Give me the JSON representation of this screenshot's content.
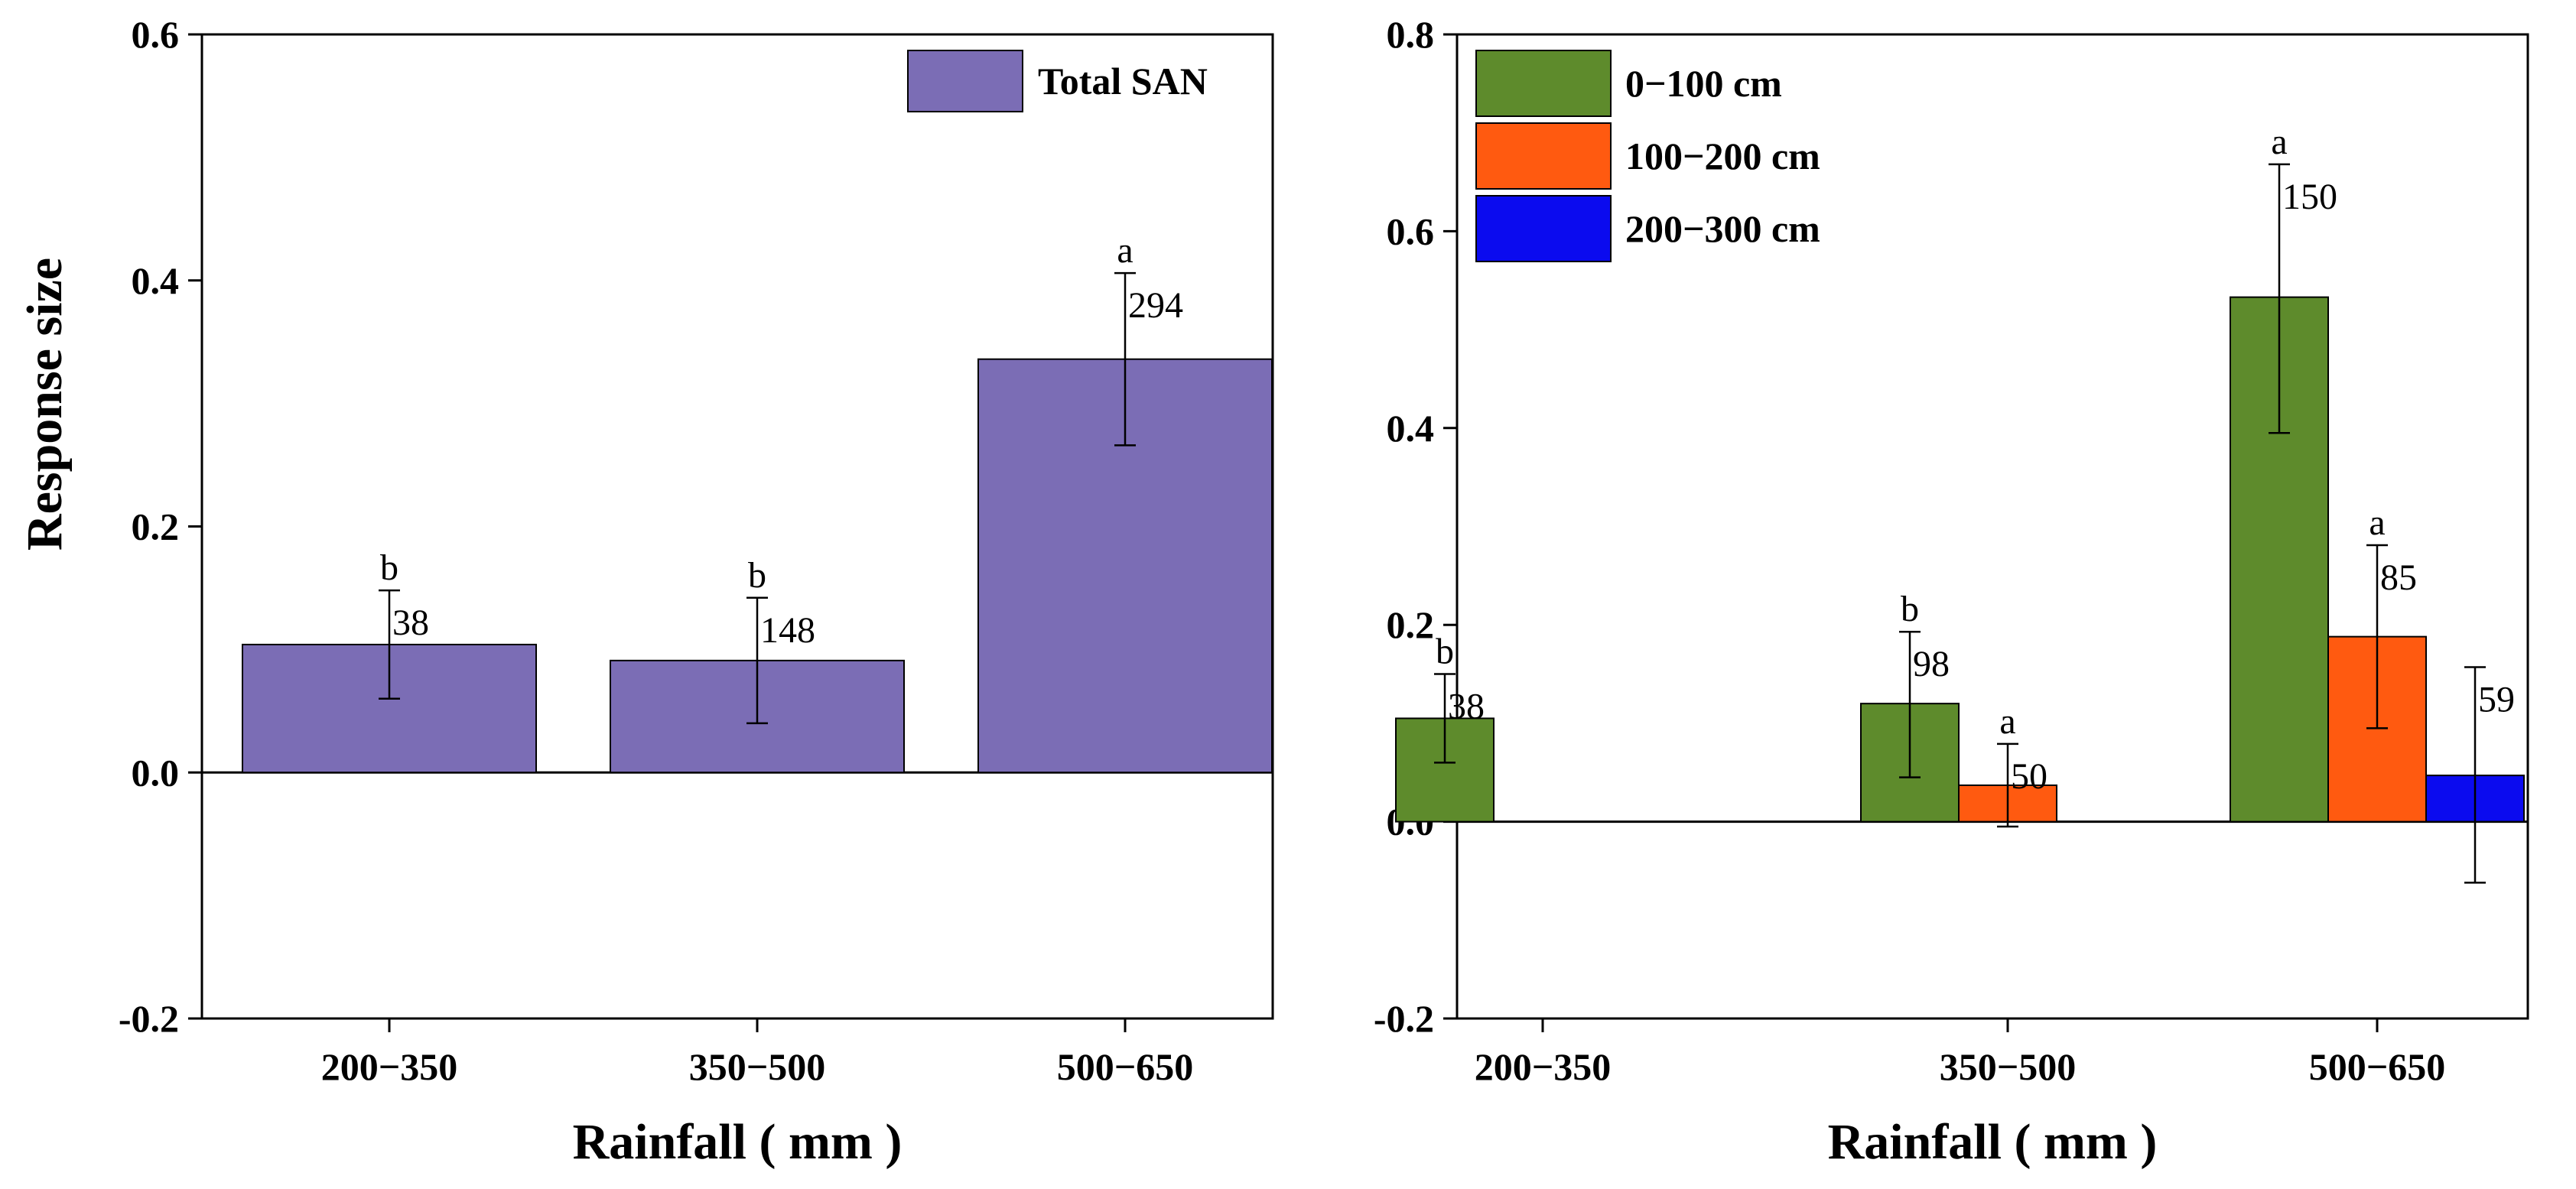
{
  "chart_data": [
    {
      "type": "bar",
      "title": "",
      "ylabel": "Response size",
      "xlabel": "Rainfall ( mm )",
      "ylim": [
        -0.2,
        0.6
      ],
      "yticks": [
        -0.2,
        0.0,
        0.2,
        0.4,
        0.6
      ],
      "ytick_labels": [
        "-0.2",
        "0.0",
        "0.2",
        "0.4",
        "0.6"
      ],
      "categories": [
        "200−350",
        "350−500",
        "500−650"
      ],
      "legend_position": "top-right",
      "series": [
        {
          "name": "Total SAN",
          "color": "#7b6db5",
          "values": [
            0.104,
            0.091,
            0.336
          ],
          "err_low": [
            0.06,
            0.04,
            0.266
          ],
          "err_high": [
            0.148,
            0.142,
            0.406
          ],
          "labels": [
            "38",
            "148",
            "294"
          ],
          "letters": [
            "b",
            "b",
            "a"
          ]
        }
      ]
    },
    {
      "type": "bar",
      "title": "",
      "ylabel": "",
      "xlabel": "Rainfall ( mm )",
      "ylim": [
        -0.2,
        0.8
      ],
      "yticks": [
        -0.2,
        0.0,
        0.2,
        0.4,
        0.6,
        0.8
      ],
      "ytick_labels": [
        "-0.2",
        "0.0",
        "0.2",
        "0.4",
        "0.6",
        "0.8"
      ],
      "categories": [
        "200−350",
        "350−500",
        "500−650"
      ],
      "legend_position": "top-left",
      "series": [
        {
          "name": "0−100 cm",
          "color": "#5e8b2c",
          "values": [
            0.105,
            0.12,
            0.533
          ],
          "err_low": [
            0.06,
            0.045,
            0.395
          ],
          "err_high": [
            0.15,
            0.193,
            0.668
          ],
          "labels": [
            "38",
            "98",
            "150"
          ],
          "letters": [
            "b",
            "b",
            "a"
          ]
        },
        {
          "name": "100−200 cm",
          "color": "#ff5a10",
          "values": [
            null,
            0.037,
            0.188
          ],
          "err_low": [
            null,
            -0.005,
            0.095
          ],
          "err_high": [
            null,
            0.079,
            0.281
          ],
          "labels": [
            "",
            "50",
            "85"
          ],
          "letters": [
            "",
            "a",
            "a"
          ]
        },
        {
          "name": "200−300 cm",
          "color": "#0b0bef",
          "values": [
            null,
            null,
            0.047
          ],
          "err_low": [
            null,
            null,
            -0.062
          ],
          "err_high": [
            null,
            null,
            0.157
          ],
          "labels": [
            "",
            "",
            "59"
          ],
          "letters": [
            "",
            "",
            ""
          ]
        }
      ]
    }
  ]
}
